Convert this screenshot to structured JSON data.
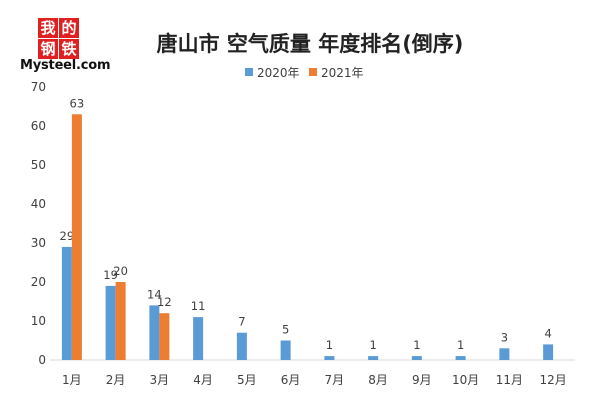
{
  "logo": {
    "chars": [
      "我",
      "的",
      "钢",
      "铁"
    ],
    "text": "Mysteel.com",
    "color": "#e02020"
  },
  "chart_data": {
    "type": "bar",
    "title": "唐山市 空气质量 年度排名(倒序)",
    "categories": [
      "1月",
      "2月",
      "3月",
      "4月",
      "5月",
      "6月",
      "7月",
      "8月",
      "9月",
      "10月",
      "11月",
      "12月"
    ],
    "series": [
      {
        "name": "2020年",
        "color": "#5b9bd5",
        "values": [
          29,
          19,
          14,
          11,
          7,
          5,
          1,
          1,
          1,
          1,
          3,
          4
        ]
      },
      {
        "name": "2021年",
        "color": "#ed7d31",
        "values": [
          63,
          20,
          12,
          null,
          null,
          null,
          null,
          null,
          null,
          null,
          null,
          null
        ]
      }
    ],
    "ylim": [
      0,
      70
    ],
    "yticks": [
      0,
      10,
      20,
      30,
      40,
      50,
      60,
      70
    ],
    "xlabel": "",
    "ylabel": "",
    "legend_position": "top-center",
    "grid": false,
    "data_labels": true
  }
}
